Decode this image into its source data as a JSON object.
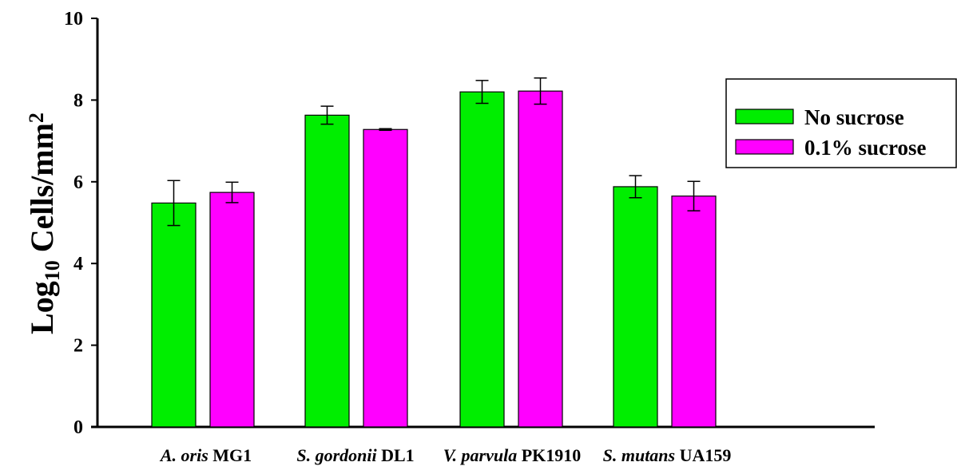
{
  "chart_data": {
    "type": "bar",
    "title": "",
    "ylabel": {
      "prefix": "Log",
      "subscript": "10",
      "main": " Cells/mm",
      "superscript": "2"
    },
    "xlabel": "",
    "ylim": [
      0,
      10
    ],
    "yticks": [
      0,
      2,
      4,
      6,
      8,
      10
    ],
    "categories": [
      {
        "italic": "A. oris",
        "plain": "MG1"
      },
      {
        "italic": "S. gordonii",
        "plain": "DL1"
      },
      {
        "italic": "V. parvula",
        "plain": "PK1910"
      },
      {
        "italic": "S. mutans",
        "plain": "UA159"
      }
    ],
    "series": [
      {
        "name": "No sucrose",
        "color": "#00ee00",
        "values": [
          5.48,
          7.63,
          8.2,
          5.88
        ],
        "errors": [
          0.55,
          0.22,
          0.28,
          0.27
        ]
      },
      {
        "name": "0.1% sucrose",
        "color": "#ff00ff",
        "values": [
          5.74,
          7.28,
          8.22,
          5.65
        ],
        "errors": [
          0.25,
          0.02,
          0.32,
          0.36
        ]
      }
    ],
    "grid": false,
    "legend_position": "right"
  }
}
